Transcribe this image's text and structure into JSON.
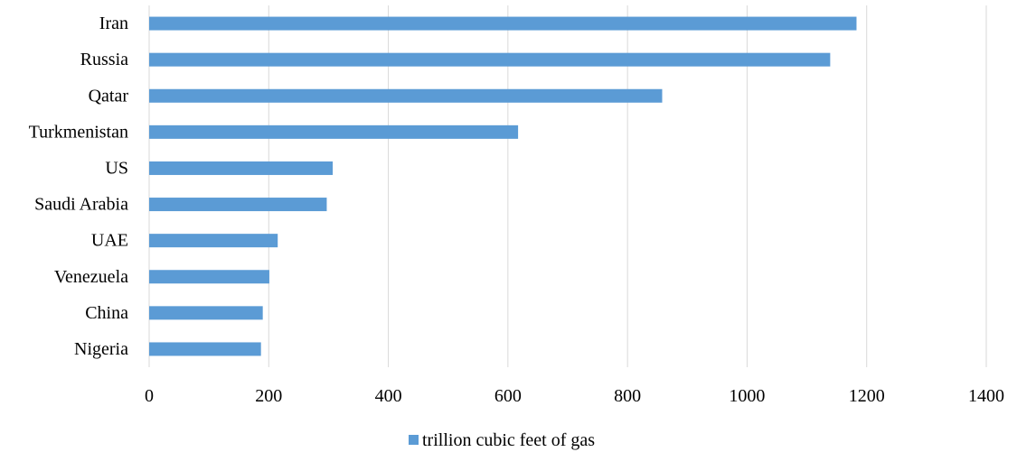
{
  "chart_data": {
    "type": "bar",
    "orientation": "horizontal",
    "categories": [
      "Iran",
      "Russia",
      "Qatar",
      "Turkmenistan",
      "US",
      "Saudi Arabia",
      "UAE",
      "Venezuela",
      "China",
      "Nigeria"
    ],
    "series": [
      {
        "name": "trillion cubic feet of gas",
        "values": [
          1183,
          1139,
          858,
          617,
          307,
          297,
          215,
          201,
          190,
          187
        ],
        "color": "#5B9BD5"
      }
    ],
    "xlim": [
      0,
      1400
    ],
    "xticks": [
      0,
      200,
      400,
      600,
      800,
      1000,
      1200,
      1400
    ],
    "grid": true,
    "legend_position": "bottom",
    "title": "",
    "xlabel": "",
    "ylabel": ""
  }
}
